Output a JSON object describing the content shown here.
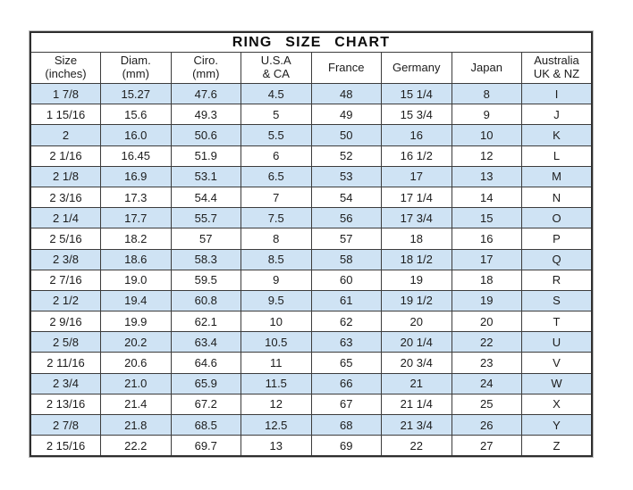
{
  "chart_data": {
    "type": "table",
    "title": "RING SIZE CHART",
    "columns": [
      "Size\n(inches)",
      "Diam.\n(mm)",
      "Ciro.\n(mm)",
      "U.S.A\n& CA",
      "France",
      "Germany",
      "Japan",
      "Australia\nUK & NZ"
    ],
    "rows": [
      [
        "1 7/8",
        "15.27",
        "47.6",
        "4.5",
        "48",
        "15 1/4",
        "8",
        "I"
      ],
      [
        "1 15/16",
        "15.6",
        "49.3",
        "5",
        "49",
        "15 3/4",
        "9",
        "J"
      ],
      [
        "2",
        "16.0",
        "50.6",
        "5.5",
        "50",
        "16",
        "10",
        "K"
      ],
      [
        "2 1/16",
        "16.45",
        "51.9",
        "6",
        "52",
        "16 1/2",
        "12",
        "L"
      ],
      [
        "2 1/8",
        "16.9",
        "53.1",
        "6.5",
        "53",
        "17",
        "13",
        "M"
      ],
      [
        "2 3/16",
        "17.3",
        "54.4",
        "7",
        "54",
        "17 1/4",
        "14",
        "N"
      ],
      [
        "2 1/4",
        "17.7",
        "55.7",
        "7.5",
        "56",
        "17 3/4",
        "15",
        "O"
      ],
      [
        "2 5/16",
        "18.2",
        "57",
        "8",
        "57",
        "18",
        "16",
        "P"
      ],
      [
        "2 3/8",
        "18.6",
        "58.3",
        "8.5",
        "58",
        "18 1/2",
        "17",
        "Q"
      ],
      [
        "2 7/16",
        "19.0",
        "59.5",
        "9",
        "60",
        "19",
        "18",
        "R"
      ],
      [
        "2 1/2",
        "19.4",
        "60.8",
        "9.5",
        "61",
        "19 1/2",
        "19",
        "S"
      ],
      [
        "2 9/16",
        "19.9",
        "62.1",
        "10",
        "62",
        "20",
        "20",
        "T"
      ],
      [
        "2 5/8",
        "20.2",
        "63.4",
        "10.5",
        "63",
        "20 1/4",
        "22",
        "U"
      ],
      [
        "2 11/16",
        "20.6",
        "64.6",
        "11",
        "65",
        "20 3/4",
        "23",
        "V"
      ],
      [
        "2 3/4",
        "21.0",
        "65.9",
        "11.5",
        "66",
        "21",
        "24",
        "W"
      ],
      [
        "2 13/16",
        "21.4",
        "67.2",
        "12",
        "67",
        "21 1/4",
        "25",
        "X"
      ],
      [
        "2 7/8",
        "21.8",
        "68.5",
        "12.5",
        "68",
        "21 3/4",
        "26",
        "Y"
      ],
      [
        "2 15/16",
        "22.2",
        "69.7",
        "13",
        "69",
        "22",
        "27",
        "Z"
      ]
    ],
    "layout": {
      "striped_rows": "odd",
      "grid": true,
      "legend_position": "none"
    },
    "colors": {
      "stripe_blue": "#cfe3f4",
      "row_white": "#ffffff",
      "border": "#3c3c3c",
      "text": "#1c1c1c",
      "page_background": "#ffffff"
    }
  }
}
